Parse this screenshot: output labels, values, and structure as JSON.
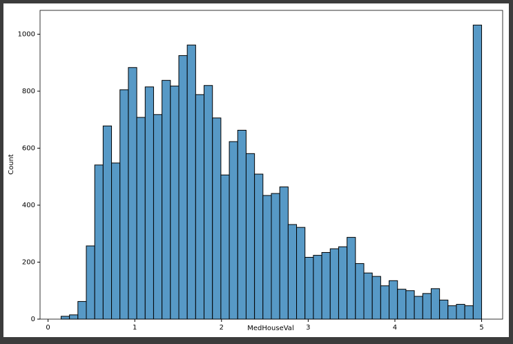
{
  "chart_data": {
    "type": "histogram",
    "xlabel": "MedHouseVal",
    "ylabel": "Count",
    "bins": [
      0.15,
      0.247,
      0.344,
      0.441,
      0.538,
      0.635,
      0.732,
      0.829,
      0.926,
      1.023,
      1.12,
      1.217,
      1.314,
      1.411,
      1.508,
      1.605,
      1.702,
      1.799,
      1.896,
      1.993,
      2.09,
      2.187,
      2.284,
      2.381,
      2.478,
      2.575,
      2.672,
      2.769,
      2.866,
      2.963,
      3.06,
      3.157,
      3.254,
      3.351,
      3.448,
      3.545,
      3.642,
      3.739,
      3.836,
      3.933,
      4.03,
      4.127,
      4.224,
      4.321,
      4.418,
      4.515,
      4.612,
      4.709,
      4.806,
      4.903,
      5.0
    ],
    "values": [
      10,
      15,
      62,
      257,
      541,
      678,
      548,
      805,
      883,
      708,
      815,
      718,
      838,
      818,
      925,
      962,
      788,
      820,
      706,
      506,
      623,
      663,
      581,
      509,
      434,
      441,
      464,
      332,
      322,
      217,
      224,
      234,
      247,
      254,
      287,
      195,
      162,
      150,
      117,
      135,
      105,
      100,
      80,
      90,
      107,
      67,
      47,
      52,
      47,
      1032
    ],
    "color": "#5799c6",
    "edgecolor": "#000000",
    "xlim": [
      -0.0925,
      5.2425
    ],
    "xticks": [
      0,
      1,
      2,
      3,
      4,
      5
    ],
    "ylim": [
      0,
      1083.6
    ],
    "yticks": [
      0,
      200,
      400,
      600,
      800,
      1000
    ]
  }
}
